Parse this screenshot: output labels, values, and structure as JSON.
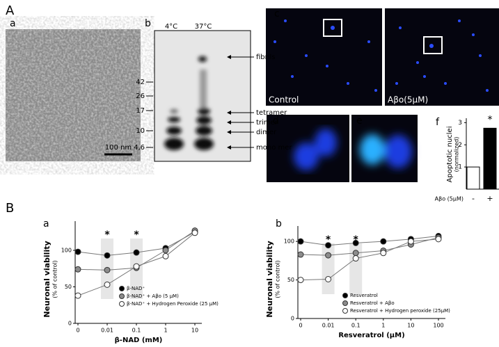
{
  "panel_labels": [
    "A",
    "a",
    "b",
    "c",
    "d",
    "e",
    "f",
    "B",
    "a",
    "b"
  ],
  "scale_bar": "100 nm",
  "blot": {
    "lanes": [
      "4°C",
      "37°C"
    ],
    "markers": [
      "42",
      "26",
      "17",
      "10",
      "4,6"
    ],
    "bands": [
      "fibrils",
      "tetramer",
      "trimer",
      "dimer",
      "mono mer"
    ]
  },
  "micrographs": [
    "Control",
    "Aβo(5μM)"
  ],
  "chart_data": [
    {
      "type": "bar",
      "ylabel": [
        "Apoptotic nuclei",
        "(normalized)"
      ],
      "xlabel": "Aβo (5μM)",
      "categories": [
        "-",
        "+"
      ],
      "values": [
        1,
        2.75
      ],
      "colors": [
        "#ffffff",
        "#000000"
      ],
      "ylim": [
        0,
        3.2
      ],
      "yticks": [
        1,
        2,
        3
      ],
      "annotations": [
        {
          "text": "*",
          "category": "+"
        }
      ]
    },
    {
      "type": "line",
      "ylabel": [
        "Neuronal viability",
        "(% of control)"
      ],
      "xlabel": "β-NAD (mM)",
      "categories": [
        "0",
        "0.01",
        "0.1",
        "1",
        "10"
      ],
      "ylim": [
        0,
        140
      ],
      "yticks": [
        0,
        50,
        100
      ],
      "series": [
        {
          "name": "β-NAD⁺",
          "color": "#000000",
          "values": [
            98,
            93,
            97,
            103,
            125
          ]
        },
        {
          "name": "β-NAD⁺ + Aβo (5 μM)",
          "color": "#8c8c8c",
          "values": [
            74,
            73,
            76,
            100,
            127
          ]
        },
        {
          "name": "β-NAD⁺ + Hydrogen Peroxide (25 μM)",
          "color": "#ffffff",
          "values": [
            38,
            53,
            78,
            92,
            124
          ]
        }
      ],
      "annotations": [
        {
          "text": "*",
          "category": "0.01"
        },
        {
          "text": "*",
          "category": "0.1"
        }
      ]
    },
    {
      "type": "line",
      "ylabel": [
        "Neuronal viability",
        "(% of control)"
      ],
      "xlabel": "Resveratrol (μM)",
      "categories": [
        "0",
        "0.01",
        "0.1",
        "1",
        "10",
        "100"
      ],
      "ylim": [
        0,
        120
      ],
      "yticks": [
        0,
        50,
        100
      ],
      "series": [
        {
          "name": "Resveratrol",
          "color": "#000000",
          "values": [
            100,
            95,
            98,
            100,
            103,
            107
          ]
        },
        {
          "name": "Resveratrol + Aβo",
          "color": "#8c8c8c",
          "values": [
            83,
            82,
            85,
            88,
            96,
            105
          ]
        },
        {
          "name": "Resveratrol + Hydrogen peroxide (25μM)",
          "color": "#ffffff",
          "values": [
            50,
            51,
            78,
            85,
            100,
            103
          ]
        }
      ],
      "annotations": [
        {
          "text": "*",
          "category": "0.01"
        },
        {
          "text": "*",
          "category": "0.1"
        }
      ]
    }
  ]
}
